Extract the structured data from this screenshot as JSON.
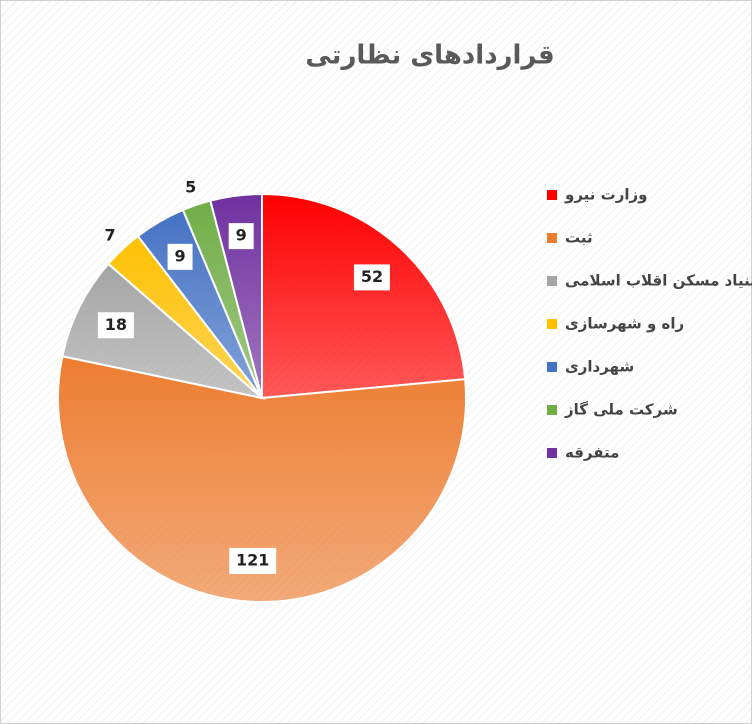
{
  "chart_data": {
    "type": "pie",
    "title": "قراردادهای نظارتی",
    "categories": [
      "وزارت نیرو",
      "ثبت",
      "بنیاد مسکن اقلاب اسلامی",
      "راه و شهرسازی",
      "شهرداری",
      "شرکت ملی گاز",
      "متفرقه"
    ],
    "values": [
      52,
      121,
      18,
      7,
      9,
      5,
      9
    ],
    "colors": [
      "#ff0000",
      "#ed7d31",
      "#a5a5a5",
      "#ffc000",
      "#4472c4",
      "#70ad47",
      "#7030a0"
    ],
    "legend": "right"
  }
}
